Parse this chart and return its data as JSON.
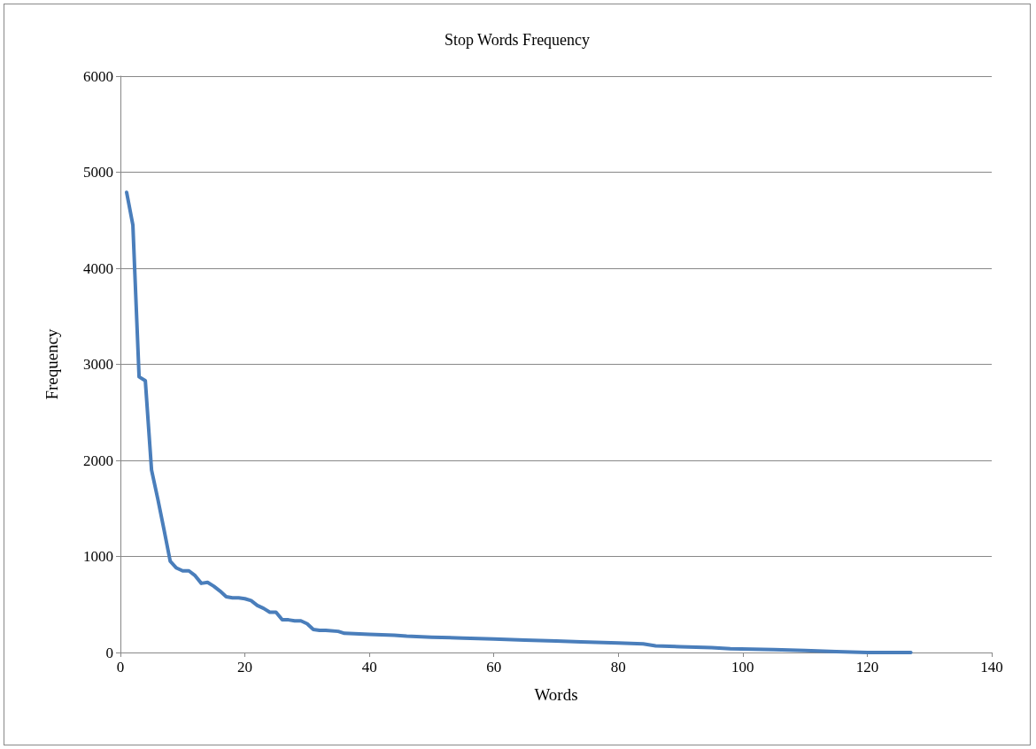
{
  "chart_data": {
    "type": "line",
    "title": "Stop Words Frequency",
    "xlabel": "Words",
    "ylabel": "Frequency",
    "x": [
      1,
      2,
      3,
      4,
      5,
      6,
      7,
      8,
      9,
      10,
      11,
      12,
      13,
      14,
      15,
      16,
      17,
      18,
      19,
      20,
      21,
      22,
      23,
      24,
      25,
      26,
      27,
      28,
      29,
      30,
      31,
      32,
      33,
      35,
      36,
      40,
      44,
      46,
      50,
      55,
      60,
      65,
      70,
      74,
      80,
      84,
      86,
      90,
      95,
      98,
      105,
      110,
      115,
      120,
      127
    ],
    "series": [
      {
        "color": "#4a7ebb",
        "values": [
          4790,
          4450,
          2870,
          2830,
          1900,
          1600,
          1280,
          950,
          880,
          850,
          850,
          800,
          720,
          730,
          690,
          640,
          580,
          570,
          570,
          560,
          540,
          490,
          460,
          420,
          420,
          340,
          340,
          330,
          330,
          300,
          240,
          230,
          230,
          220,
          200,
          190,
          180,
          170,
          160,
          150,
          140,
          130,
          120,
          110,
          100,
          90,
          70,
          60,
          50,
          40,
          30,
          20,
          10,
          0,
          0
        ]
      }
    ],
    "xlim": [
      0,
      140
    ],
    "xticks": [
      0,
      20,
      40,
      60,
      80,
      100,
      120,
      140
    ],
    "ylim": [
      0,
      6000
    ],
    "yticks": [
      0,
      1000,
      2000,
      3000,
      4000,
      5000,
      6000
    ],
    "grid": "y",
    "marker": "none",
    "line_style": "solid"
  }
}
